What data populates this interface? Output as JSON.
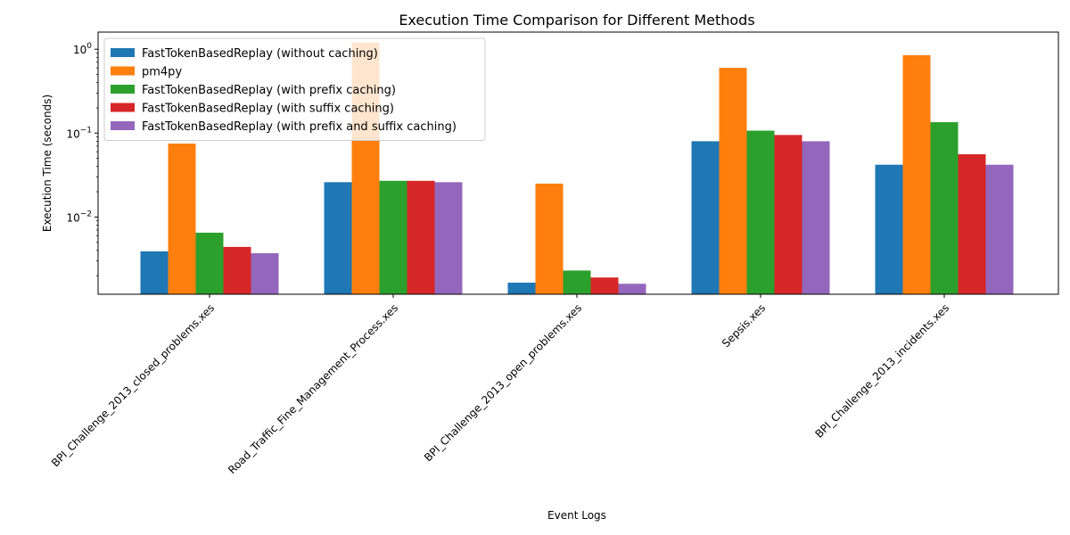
{
  "chart_data": {
    "type": "bar",
    "title": "Execution Time Comparison for Different Methods",
    "xlabel": "Event Logs",
    "ylabel": "Execution Time (seconds)",
    "yscale": "log",
    "ylim": [
      0.0012,
      1.6
    ],
    "yticks": [
      {
        "value": 0.01,
        "base": "10",
        "exp": "−2"
      },
      {
        "value": 0.1,
        "base": "10",
        "exp": "−1"
      },
      {
        "value": 1,
        "base": "10",
        "exp": "0"
      }
    ],
    "grid": false,
    "legend_position": "top-left",
    "categories": [
      "BPI_Challenge_2013_closed_problems.xes",
      "Road_Traffic_Fine_Management_Process.xes",
      "BPI_Challenge_2013_open_problems.xes",
      "Sepsis.xes",
      "BPI_Challenge_2013_incidents.xes"
    ],
    "series": [
      {
        "name": "FastTokenBasedReplay (without caching)",
        "color": "#1f77b4",
        "values": [
          0.0039,
          0.026,
          0.00165,
          0.08,
          0.042
        ]
      },
      {
        "name": "pm4py",
        "color": "#ff7f0e",
        "values": [
          0.075,
          1.2,
          0.025,
          0.6,
          0.85
        ]
      },
      {
        "name": "FastTokenBasedReplay (with prefix caching)",
        "color": "#2ca02c",
        "values": [
          0.0065,
          0.027,
          0.0023,
          0.107,
          0.135
        ]
      },
      {
        "name": "FastTokenBasedReplay (with suffix caching)",
        "color": "#d62728",
        "values": [
          0.0044,
          0.027,
          0.0019,
          0.095,
          0.056
        ]
      },
      {
        "name": "FastTokenBasedReplay (with prefix and suffix caching)",
        "color": "#9467bd",
        "values": [
          0.0037,
          0.026,
          0.0016,
          0.08,
          0.042
        ]
      }
    ]
  }
}
